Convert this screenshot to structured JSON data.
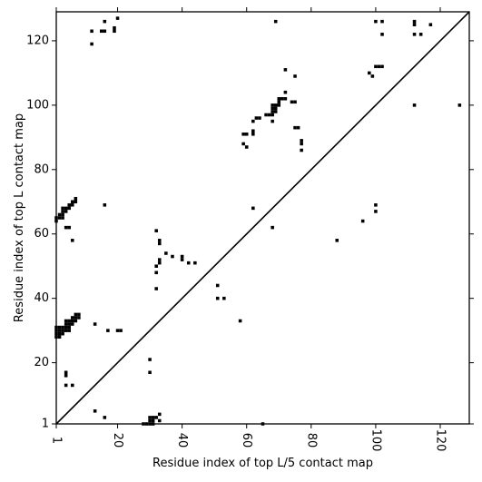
{
  "chart_data": {
    "type": "scatter",
    "title": "",
    "xlabel": "Residue index of top L/5 contact map",
    "ylabel": "Residue index of top L contact map",
    "xlim": [
      1,
      129
    ],
    "ylim": [
      1,
      129
    ],
    "xticks": [
      1,
      20,
      40,
      60,
      80,
      100,
      120
    ],
    "yticks": [
      1,
      20,
      40,
      60,
      80,
      100,
      120
    ],
    "grid": false,
    "diagonal": true,
    "marker_color": "#000000",
    "series": [
      {
        "points": [
          [
            1,
            28
          ],
          [
            1,
            29
          ],
          [
            1,
            30
          ],
          [
            1,
            31
          ],
          [
            2,
            28
          ],
          [
            2,
            29
          ],
          [
            2,
            30
          ],
          [
            2,
            31
          ],
          [
            3,
            29
          ],
          [
            3,
            30
          ],
          [
            3,
            31
          ],
          [
            4,
            30
          ],
          [
            4,
            31
          ],
          [
            4,
            32
          ],
          [
            4,
            33
          ],
          [
            5,
            30
          ],
          [
            5,
            31
          ],
          [
            5,
            32
          ],
          [
            5,
            33
          ],
          [
            6,
            32
          ],
          [
            6,
            33
          ],
          [
            6,
            34
          ],
          [
            7,
            33
          ],
          [
            7,
            34
          ],
          [
            7,
            35
          ],
          [
            8,
            34
          ],
          [
            8,
            35
          ],
          [
            1,
            64
          ],
          [
            1,
            65
          ],
          [
            2,
            65
          ],
          [
            2,
            66
          ],
          [
            3,
            65
          ],
          [
            3,
            66
          ],
          [
            3,
            67
          ],
          [
            3,
            68
          ],
          [
            4,
            67
          ],
          [
            4,
            68
          ],
          [
            5,
            68
          ],
          [
            5,
            69
          ],
          [
            6,
            69
          ],
          [
            6,
            70
          ],
          [
            7,
            70
          ],
          [
            7,
            71
          ],
          [
            4,
            62
          ],
          [
            5,
            62
          ],
          [
            6,
            58
          ],
          [
            4,
            17
          ],
          [
            4,
            16
          ],
          [
            4,
            13
          ],
          [
            6,
            13
          ],
          [
            12,
            123
          ],
          [
            12,
            119
          ],
          [
            15,
            123
          ],
          [
            16,
            123
          ],
          [
            16,
            126
          ],
          [
            19,
            123
          ],
          [
            19,
            124
          ],
          [
            20,
            127
          ],
          [
            16,
            69
          ],
          [
            13,
            32
          ],
          [
            13,
            5
          ],
          [
            16,
            3
          ],
          [
            17,
            30
          ],
          [
            20,
            30
          ],
          [
            21,
            30
          ],
          [
            28,
            1
          ],
          [
            29,
            1
          ],
          [
            30,
            1
          ],
          [
            30,
            2
          ],
          [
            30,
            3
          ],
          [
            31,
            3
          ],
          [
            31,
            1
          ],
          [
            31,
            2
          ],
          [
            32,
            3
          ],
          [
            32,
            61
          ],
          [
            32,
            50
          ],
          [
            32,
            48
          ],
          [
            32,
            43
          ],
          [
            30,
            21
          ],
          [
            30,
            17
          ],
          [
            33,
            4
          ],
          [
            33,
            2
          ],
          [
            33,
            51
          ],
          [
            33,
            52
          ],
          [
            33,
            57
          ],
          [
            33,
            58
          ],
          [
            35,
            54
          ],
          [
            37,
            53
          ],
          [
            40,
            52
          ],
          [
            40,
            53
          ],
          [
            42,
            51
          ],
          [
            44,
            51
          ],
          [
            51,
            44
          ],
          [
            51,
            40
          ],
          [
            53,
            40
          ],
          [
            58,
            33
          ],
          [
            59,
            91
          ],
          [
            60,
            91
          ],
          [
            59,
            88
          ],
          [
            60,
            87
          ],
          [
            62,
            91
          ],
          [
            62,
            92
          ],
          [
            62,
            95
          ],
          [
            62,
            68
          ],
          [
            63,
            96
          ],
          [
            64,
            96
          ],
          [
            65,
            1
          ],
          [
            66,
            97
          ],
          [
            67,
            97
          ],
          [
            68,
            97
          ],
          [
            68,
            98
          ],
          [
            68,
            99
          ],
          [
            68,
            100
          ],
          [
            69,
            98
          ],
          [
            69,
            99
          ],
          [
            69,
            100
          ],
          [
            70,
            100
          ],
          [
            70,
            101
          ],
          [
            70,
            102
          ],
          [
            71,
            102
          ],
          [
            72,
            102
          ],
          [
            72,
            104
          ],
          [
            72,
            111
          ],
          [
            74,
            101
          ],
          [
            75,
            101
          ],
          [
            75,
            93
          ],
          [
            75,
            109
          ],
          [
            76,
            93
          ],
          [
            77,
            89
          ],
          [
            77,
            88
          ],
          [
            77,
            86
          ],
          [
            68,
            95
          ],
          [
            68,
            62
          ],
          [
            69,
            126
          ],
          [
            88,
            58
          ],
          [
            96,
            64
          ],
          [
            98,
            110
          ],
          [
            99,
            109
          ],
          [
            100,
            112
          ],
          [
            101,
            112
          ],
          [
            102,
            112
          ],
          [
            100,
            126
          ],
          [
            102,
            126
          ],
          [
            102,
            122
          ],
          [
            100,
            69
          ],
          [
            100,
            67
          ],
          [
            112,
            122
          ],
          [
            112,
            125
          ],
          [
            112,
            126
          ],
          [
            112,
            100
          ],
          [
            114,
            122
          ],
          [
            117,
            125
          ],
          [
            126,
            100
          ]
        ]
      }
    ]
  }
}
